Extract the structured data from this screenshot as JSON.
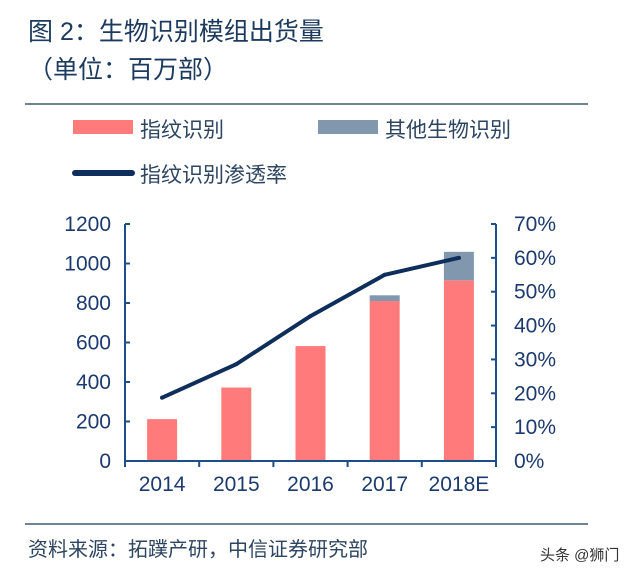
{
  "chart_data": {
    "type": "bar",
    "title": "图 2：生物识别模组出货量",
    "subtitle": "（单位：百万部）",
    "categories": [
      "2014",
      "2015",
      "2016",
      "2017",
      "2018E"
    ],
    "stacked": true,
    "series": [
      {
        "name": "指纹识别",
        "type": "bar",
        "axis": "left",
        "color": "#ff7b7b",
        "values": [
          212,
          372,
          582,
          810,
          915
        ]
      },
      {
        "name": "其他生物识别",
        "type": "bar",
        "axis": "left",
        "color": "#8197ae",
        "values": [
          0,
          0,
          0,
          29,
          144
        ]
      },
      {
        "name": "指纹识别渗透率",
        "type": "line",
        "axis": "right",
        "color": "#0e2e5c",
        "values": [
          18.7,
          28.6,
          42.8,
          55.0,
          60.0
        ]
      }
    ],
    "ylim": [
      0,
      1200
    ],
    "yticks": [
      "0",
      "200",
      "400",
      "600",
      "800",
      "1000",
      "1200"
    ],
    "y2lim": [
      0,
      70
    ],
    "y2ticks": [
      "0%",
      "10%",
      "20%",
      "30%",
      "40%",
      "50%",
      "60%",
      "70%"
    ],
    "grid": false,
    "legend_position": "top-left"
  },
  "footer": {
    "source": "资料来源：拓蹼产研，中信证券研究部",
    "watermark": "头条 @狮门"
  }
}
